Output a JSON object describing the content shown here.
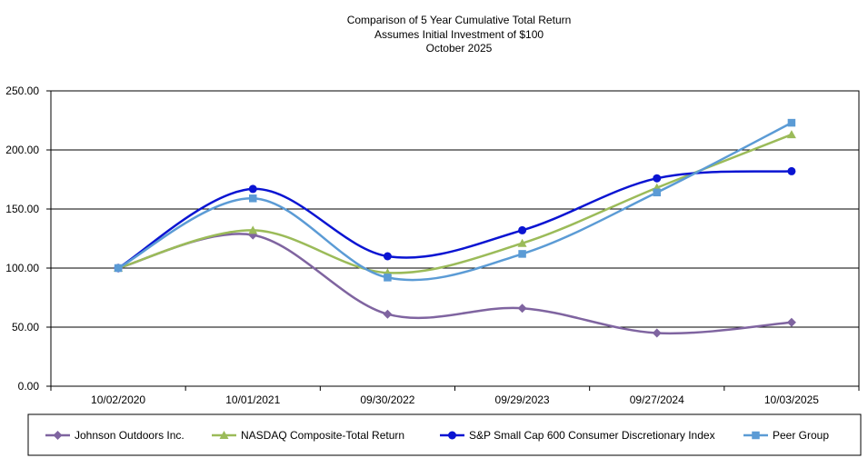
{
  "chart_data": {
    "type": "line",
    "title": "Comparison of 5 Year Cumulative Total Return",
    "subtitle": "Assumes Initial Investment of $100",
    "subtitle2": "October 2025",
    "xlabel": "",
    "ylabel": "",
    "categories": [
      "10/02/2020",
      "10/01/2021",
      "09/30/2022",
      "09/29/2023",
      "09/27/2024",
      "10/03/2025"
    ],
    "ylim": [
      0,
      250
    ],
    "yticks": [
      "0.00",
      "50.00",
      "100.00",
      "150.00",
      "200.00",
      "250.00"
    ],
    "grid": true,
    "legend_position": "bottom",
    "series": [
      {
        "name": "Johnson Outdoors Inc.",
        "values": [
          100,
          128,
          61,
          66,
          45,
          54
        ],
        "color": "#7F64A0",
        "marker": "diamond"
      },
      {
        "name": "NASDAQ Composite-Total Return",
        "values": [
          100,
          132,
          96,
          121,
          168,
          213
        ],
        "color": "#9BBB59",
        "marker": "triangle"
      },
      {
        "name": "S&P Small Cap 600 Consumer Discretionary Index",
        "values": [
          100,
          167,
          110,
          132,
          176,
          182
        ],
        "color": "#0A14D2",
        "marker": "circle"
      },
      {
        "name": "Peer Group",
        "values": [
          100,
          159,
          92,
          112,
          164,
          223
        ],
        "color": "#5B9BD5",
        "marker": "square"
      }
    ]
  }
}
